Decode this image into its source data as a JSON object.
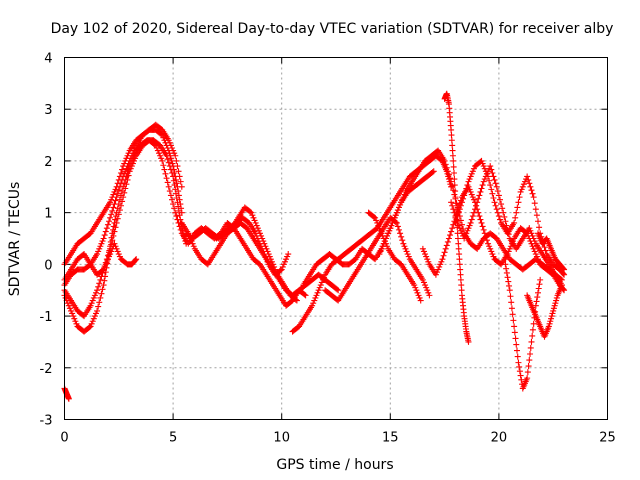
{
  "chart_data": {
    "type": "scatter",
    "title": "Day 102 of 2020, Sidereal Day-to-day VTEC variation (SDTVAR) for receiver alby",
    "xlabel": "GPS time / hours",
    "ylabel": "SDTVAR / TECUs",
    "xlim": [
      0,
      25
    ],
    "ylim": [
      -3,
      4
    ],
    "xticks": [
      "0",
      "5",
      "10",
      "15",
      "20",
      "25"
    ],
    "yticks": [
      "-3",
      "-2",
      "-1",
      "0",
      "1",
      "2",
      "3",
      "4"
    ],
    "grid": true,
    "marker": "plus",
    "series": [
      {
        "name": "alby",
        "color": "#ff0000",
        "tracks": [
          {
            "x": [
              0.0,
              0.1,
              0.2
            ],
            "y": [
              -2.4,
              -2.5,
              -2.6
            ]
          },
          {
            "x": [
              0.0,
              0.3,
              0.6,
              0.9,
              1.2,
              1.5,
              1.8,
              2.0,
              2.2,
              2.4,
              2.7,
              3.0,
              3.3,
              3.5,
              3.8,
              4.1,
              4.4,
              4.7,
              5.0,
              5.2,
              5.4,
              5.6
            ],
            "y": [
              -0.6,
              -0.9,
              -1.2,
              -1.3,
              -1.2,
              -0.9,
              -0.4,
              0.1,
              0.6,
              1.0,
              1.5,
              1.9,
              2.2,
              2.3,
              2.4,
              2.4,
              2.3,
              2.1,
              1.7,
              1.2,
              0.7,
              0.4
            ]
          },
          {
            "x": [
              0.0,
              0.3,
              0.6,
              0.9,
              1.2,
              1.5,
              1.8,
              2.0,
              2.3,
              2.6,
              2.9,
              3.1,
              3.3
            ],
            "y": [
              -0.3,
              -0.1,
              0.1,
              0.2,
              0.0,
              -0.2,
              -0.1,
              0.1,
              0.4,
              0.1,
              0.0,
              0.0,
              0.1
            ]
          },
          {
            "x": [
              0.0,
              0.3,
              0.6,
              0.9,
              1.2,
              1.5,
              1.8,
              2.1,
              2.4,
              2.7,
              3.0,
              3.3,
              3.6,
              3.9,
              4.2,
              4.5,
              4.8,
              5.1,
              5.4
            ],
            "y": [
              0.0,
              0.2,
              0.4,
              0.5,
              0.6,
              0.8,
              1.0,
              1.2,
              1.5,
              1.9,
              2.2,
              2.4,
              2.5,
              2.6,
              2.7,
              2.6,
              2.4,
              2.1,
              1.5
            ]
          },
          {
            "x": [
              0.0,
              0.3,
              0.6,
              0.9,
              1.2,
              1.5,
              1.8,
              2.1,
              2.4,
              2.7,
              3.0,
              3.3,
              3.6,
              3.9,
              4.2,
              4.5,
              4.8,
              5.0,
              5.2,
              5.4
            ],
            "y": [
              -0.4,
              -0.2,
              -0.1,
              -0.1,
              0.0,
              0.2,
              0.5,
              0.9,
              1.3,
              1.7,
              2.0,
              2.3,
              2.5,
              2.6,
              2.6,
              2.5,
              2.2,
              1.9,
              1.5,
              1.0
            ]
          },
          {
            "x": [
              0.0,
              0.3,
              0.6,
              0.9,
              1.2,
              1.5,
              1.8,
              2.1,
              2.4,
              2.7,
              3.0,
              3.3,
              3.6,
              3.9,
              4.2,
              4.5,
              4.8,
              5.1,
              5.4,
              5.7,
              6.0,
              6.3,
              6.6,
              6.9,
              7.2,
              7.5,
              7.8,
              8.1,
              8.4,
              8.7,
              9.0,
              9.3,
              9.6,
              9.9,
              10.2,
              10.5,
              10.8,
              11.1
            ],
            "y": [
              -0.5,
              -0.7,
              -0.9,
              -1.0,
              -0.8,
              -0.5,
              -0.1,
              0.3,
              0.8,
              1.3,
              1.8,
              2.1,
              2.3,
              2.4,
              2.3,
              2.0,
              1.5,
              1.0,
              0.6,
              0.4,
              0.6,
              0.7,
              0.6,
              0.5,
              0.6,
              0.8,
              0.7,
              0.5,
              0.3,
              0.1,
              0.0,
              -0.2,
              -0.4,
              -0.6,
              -0.8,
              -0.7,
              -0.5,
              -0.6
            ]
          },
          {
            "x": [
              5.4,
              5.7,
              6.0,
              6.3,
              6.6,
              6.9,
              7.2,
              7.5,
              7.8,
              8.1,
              8.4,
              8.7,
              9.0,
              9.3,
              9.6,
              9.9,
              10.2,
              10.5,
              10.8,
              11.1,
              11.4,
              11.7,
              12.0,
              12.3,
              12.6
            ],
            "y": [
              0.8,
              0.6,
              0.3,
              0.1,
              0.0,
              0.2,
              0.4,
              0.6,
              0.7,
              0.8,
              0.7,
              0.5,
              0.3,
              0.1,
              -0.1,
              -0.3,
              -0.5,
              -0.6,
              -0.5,
              -0.4,
              -0.3,
              -0.2,
              -0.3,
              -0.4,
              -0.5
            ]
          },
          {
            "x": [
              5.6,
              5.9,
              6.2,
              6.5,
              6.8,
              7.1,
              7.4,
              7.7,
              8.0,
              8.3,
              8.6,
              8.9,
              9.2,
              9.5,
              9.8,
              10.1,
              10.4,
              10.7
            ],
            "y": [
              0.6,
              0.5,
              0.6,
              0.7,
              0.6,
              0.5,
              0.6,
              0.7,
              0.9,
              1.1,
              1.0,
              0.7,
              0.4,
              0.1,
              -0.2,
              -0.4,
              -0.6,
              -0.7
            ]
          },
          {
            "x": [
              7.0,
              7.3,
              7.6,
              7.9,
              8.2,
              8.5,
              8.8,
              9.1,
              9.4,
              9.7,
              10.0,
              10.3
            ],
            "y": [
              0.5,
              0.6,
              0.7,
              0.8,
              0.9,
              0.8,
              0.6,
              0.3,
              0.0,
              -0.2,
              -0.1,
              0.2
            ]
          },
          {
            "x": [
              10.5,
              10.8,
              11.1,
              11.4,
              11.7,
              12.0,
              12.3,
              12.6,
              12.9,
              13.2,
              13.5,
              13.8,
              14.1,
              14.4,
              14.7,
              15.0,
              15.3,
              15.6,
              15.9,
              16.2,
              16.5,
              16.8,
              17.1,
              17.4,
              17.6,
              17.8
            ],
            "y": [
              -1.3,
              -1.2,
              -1.0,
              -0.8,
              -0.5,
              -0.2,
              0.0,
              0.1,
              0.2,
              0.3,
              0.4,
              0.5,
              0.6,
              0.7,
              0.9,
              1.1,
              1.3,
              1.5,
              1.7,
              1.8,
              1.9,
              2.0,
              2.1,
              2.0,
              1.8,
              1.5
            ]
          },
          {
            "x": [
              11.0,
              11.3,
              11.6,
              11.9,
              12.2,
              12.5,
              12.8,
              13.1,
              13.4,
              13.7,
              14.0,
              14.3,
              14.6,
              14.9,
              15.2,
              15.5,
              15.8,
              16.1,
              16.4,
              16.7,
              17.0
            ],
            "y": [
              -0.4,
              -0.2,
              0.0,
              0.1,
              0.2,
              0.1,
              0.0,
              0.0,
              0.1,
              0.3,
              0.2,
              0.1,
              0.3,
              0.6,
              0.9,
              1.2,
              1.4,
              1.5,
              1.6,
              1.7,
              1.8
            ]
          },
          {
            "x": [
              12.0,
              12.3,
              12.6,
              12.9,
              13.2,
              13.5,
              13.8,
              14.1,
              14.4,
              14.7,
              15.0,
              15.3,
              15.6,
              15.9,
              16.2,
              16.5,
              16.8
            ],
            "y": [
              -0.5,
              -0.6,
              -0.7,
              -0.5,
              -0.3,
              -0.1,
              0.1,
              0.3,
              0.5,
              0.7,
              0.9,
              0.8,
              0.4,
              0.1,
              -0.1,
              -0.3,
              -0.6
            ]
          },
          {
            "x": [
              14.5,
              14.8,
              15.1,
              15.4,
              15.7,
              16.0,
              16.3,
              16.6,
              16.9,
              17.2,
              17.5,
              17.8,
              18.1,
              18.4,
              18.7,
              19.0,
              19.3,
              19.6,
              19.9,
              20.2,
              20.5,
              20.8,
              21.1,
              21.4,
              21.7,
              22.0,
              22.3,
              22.6,
              22.9
            ],
            "y": [
              0.2,
              0.5,
              0.8,
              1.1,
              1.4,
              1.6,
              1.8,
              2.0,
              2.1,
              2.2,
              2.0,
              1.6,
              1.1,
              0.6,
              0.4,
              0.3,
              0.5,
              0.6,
              0.5,
              0.3,
              0.1,
              0.0,
              -0.1,
              0.0,
              0.1,
              0.0,
              -0.1,
              -0.2,
              -0.3
            ]
          },
          {
            "x": [
              17.5,
              17.6,
              17.7,
              17.8,
              17.9,
              18.0,
              18.1,
              18.2,
              18.3,
              18.4,
              18.5,
              18.6
            ],
            "y": [
              3.2,
              3.3,
              3.1,
              2.6,
              2.0,
              1.3,
              0.6,
              0.0,
              -0.6,
              -1.0,
              -1.3,
              -1.5
            ]
          },
          {
            "x": [
              17.8,
              18.1,
              18.4,
              18.7,
              19.0,
              19.3,
              19.6,
              19.9,
              20.2,
              20.5,
              20.8,
              21.1,
              21.4,
              21.7,
              22.0,
              22.3,
              22.6,
              22.9
            ],
            "y": [
              1.2,
              0.8,
              0.5,
              0.8,
              1.2,
              1.6,
              1.9,
              1.5,
              1.0,
              0.5,
              0.3,
              0.5,
              0.7,
              0.4,
              0.2,
              0.0,
              -0.2,
              -0.4
            ]
          },
          {
            "x": [
              18.0,
              18.3,
              18.6,
              18.9,
              19.2,
              19.5,
              19.8,
              20.1,
              20.4,
              20.7,
              21.0,
              21.3,
              21.6,
              21.9,
              22.2,
              22.5,
              22.8,
              23.0
            ],
            "y": [
              0.8,
              1.2,
              1.6,
              1.9,
              2.0,
              1.7,
              1.2,
              0.8,
              0.6,
              0.8,
              1.4,
              1.7,
              1.3,
              0.6,
              0.2,
              0.0,
              -0.1,
              -0.2
            ]
          },
          {
            "x": [
              20.3,
              20.5,
              20.7,
              20.9,
              21.1,
              21.3,
              21.5,
              21.7,
              21.9
            ],
            "y": [
              0.0,
              -0.5,
              -1.2,
              -1.9,
              -2.4,
              -2.2,
              -1.5,
              -0.8,
              -0.3
            ]
          },
          {
            "x": [
              21.3,
              21.5,
              21.7,
              21.9,
              22.1,
              22.3,
              22.5,
              22.7,
              22.9
            ],
            "y": [
              -0.6,
              -0.8,
              -1.0,
              -1.2,
              -1.4,
              -1.2,
              -0.9,
              -0.6,
              -0.4
            ]
          },
          {
            "x": [
              21.8,
              22.0,
              22.2,
              22.4,
              22.6,
              22.8,
              23.0
            ],
            "y": [
              0.6,
              0.4,
              0.5,
              0.3,
              0.1,
              0.0,
              -0.1
            ]
          },
          {
            "x": [
              14.0,
              14.3,
              14.6,
              14.9,
              15.2,
              15.5,
              15.8,
              16.1,
              16.4
            ],
            "y": [
              1.0,
              0.9,
              0.6,
              0.3,
              0.1,
              0.0,
              -0.2,
              -0.4,
              -0.7
            ]
          },
          {
            "x": [
              16.5,
              16.8,
              17.1,
              17.4,
              17.7,
              18.0,
              18.3,
              18.6,
              18.9,
              19.2,
              19.5,
              19.8,
              20.1,
              20.4,
              20.7,
              21.0,
              21.3,
              21.6,
              21.9,
              22.2,
              22.5,
              22.8,
              23.0
            ],
            "y": [
              0.3,
              0.0,
              -0.2,
              0.1,
              0.5,
              0.9,
              1.3,
              1.5,
              1.2,
              0.8,
              0.4,
              0.1,
              0.0,
              0.2,
              0.5,
              0.7,
              0.6,
              0.3,
              0.0,
              -0.1,
              -0.2,
              -0.4,
              -0.5
            ]
          }
        ]
      }
    ]
  }
}
